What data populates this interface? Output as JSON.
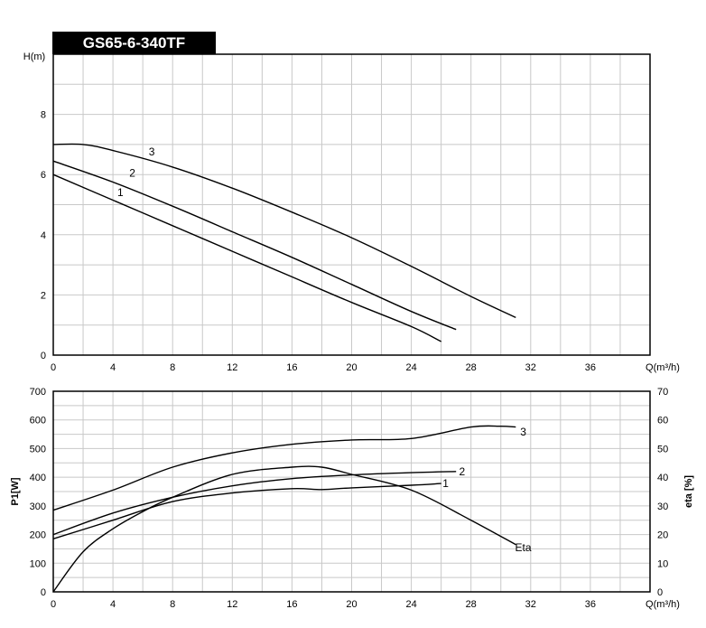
{
  "chart_data": [
    {
      "type": "line",
      "title": "GS65-6-340TF",
      "ylabel": "H(m)",
      "xlabel": "Q(m³/h)",
      "xlim": [
        0,
        40
      ],
      "ylim": [
        0,
        10
      ],
      "xticks": [
        0,
        4,
        8,
        12,
        16,
        20,
        24,
        28,
        32,
        36
      ],
      "yticks": [
        0,
        2,
        4,
        6,
        8
      ],
      "grid": true,
      "series": [
        {
          "name": "1",
          "label_at": [
            4.5,
            5.4
          ],
          "x": [
            0,
            4,
            8,
            12,
            16,
            20,
            24,
            26
          ],
          "y": [
            6.0,
            5.15,
            4.3,
            3.45,
            2.6,
            1.75,
            0.95,
            0.45
          ]
        },
        {
          "name": "2",
          "label_at": [
            5.3,
            6.05
          ],
          "x": [
            0,
            4,
            8,
            12,
            16,
            20,
            24,
            27
          ],
          "y": [
            6.45,
            5.75,
            4.95,
            4.1,
            3.25,
            2.35,
            1.45,
            0.85
          ]
        },
        {
          "name": "3",
          "label_at": [
            6.6,
            6.75
          ],
          "x": [
            0,
            2,
            4,
            8,
            12,
            16,
            20,
            24,
            28,
            31
          ],
          "y": [
            7.0,
            7.0,
            6.8,
            6.25,
            5.55,
            4.75,
            3.9,
            2.95,
            1.95,
            1.25
          ]
        }
      ]
    },
    {
      "type": "line",
      "ylabel": "P1[W]",
      "y2label": "eta [%]",
      "xlabel": "Q(m³/h)",
      "xlim": [
        0,
        40
      ],
      "ylim": [
        0,
        700
      ],
      "y2lim": [
        0,
        70
      ],
      "xticks": [
        0,
        4,
        8,
        12,
        16,
        20,
        24,
        28,
        32,
        36
      ],
      "yticks": [
        0,
        100,
        200,
        300,
        400,
        500,
        600,
        700
      ],
      "y2ticks": [
        0,
        10,
        20,
        30,
        40,
        50,
        60,
        70
      ],
      "grid": true,
      "series": [
        {
          "name": "1",
          "axis": "left",
          "label_at": [
            26.3,
            378
          ],
          "x": [
            0,
            4,
            8,
            12,
            16,
            18,
            20,
            24,
            26
          ],
          "y": [
            185,
            250,
            315,
            345,
            360,
            357,
            363,
            372,
            378
          ]
        },
        {
          "name": "2",
          "axis": "left",
          "label_at": [
            27.4,
            420
          ],
          "x": [
            0,
            4,
            8,
            12,
            16,
            20,
            24,
            27
          ],
          "y": [
            200,
            275,
            330,
            370,
            395,
            408,
            416,
            420
          ]
        },
        {
          "name": "3",
          "axis": "left",
          "label_at": [
            31.5,
            558
          ],
          "x": [
            0,
            4,
            8,
            12,
            16,
            20,
            24,
            28,
            30,
            31
          ],
          "y": [
            285,
            355,
            435,
            485,
            515,
            530,
            535,
            575,
            578,
            575
          ]
        },
        {
          "name": "Eta",
          "axis": "right",
          "label_at": [
            31.5,
            15.5
          ],
          "x": [
            0,
            2,
            4,
            6,
            8,
            12,
            16,
            18,
            20,
            24,
            28,
            31
          ],
          "y": [
            0,
            14,
            22,
            28,
            33,
            41,
            43.5,
            43.5,
            41,
            35.5,
            25,
            16.5
          ]
        }
      ]
    }
  ]
}
